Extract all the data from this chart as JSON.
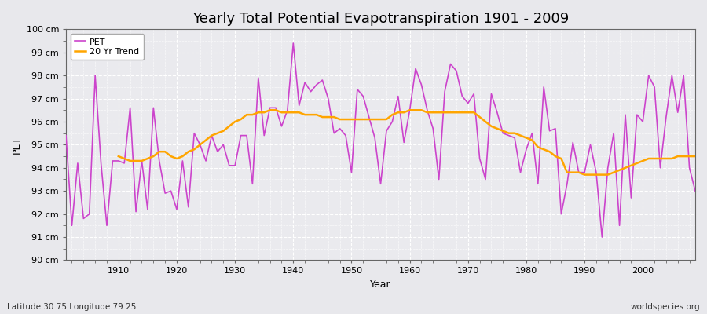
{
  "title": "Yearly Total Potential Evapotranspiration 1901 - 2009",
  "xlabel": "Year",
  "ylabel": "PET",
  "subtitle": "Latitude 30.75 Longitude 79.25",
  "watermark": "worldspecies.org",
  "ylim": [
    90,
    100
  ],
  "ytick_labels": [
    "90 cm",
    "91 cm",
    "92 cm",
    "93 cm",
    "94 cm",
    "95 cm",
    "96 cm",
    "97 cm",
    "98 cm",
    "99 cm",
    "100 cm"
  ],
  "pet_color": "#CC44CC",
  "trend_color": "#FFA500",
  "background_color": "#E8E8EC",
  "plot_bg_color": "#EAEAEE",
  "grid_color": "#FFFFFF",
  "years": [
    1901,
    1902,
    1903,
    1904,
    1905,
    1906,
    1907,
    1908,
    1909,
    1910,
    1911,
    1912,
    1913,
    1914,
    1915,
    1916,
    1917,
    1918,
    1919,
    1920,
    1921,
    1922,
    1923,
    1924,
    1925,
    1926,
    1927,
    1928,
    1929,
    1930,
    1931,
    1932,
    1933,
    1934,
    1935,
    1936,
    1937,
    1938,
    1939,
    1940,
    1941,
    1942,
    1943,
    1944,
    1945,
    1946,
    1947,
    1948,
    1949,
    1950,
    1951,
    1952,
    1953,
    1954,
    1955,
    1956,
    1957,
    1958,
    1959,
    1960,
    1961,
    1962,
    1963,
    1964,
    1965,
    1966,
    1967,
    1968,
    1969,
    1970,
    1971,
    1972,
    1973,
    1974,
    1975,
    1976,
    1977,
    1978,
    1979,
    1980,
    1981,
    1982,
    1983,
    1984,
    1985,
    1986,
    1987,
    1988,
    1989,
    1990,
    1991,
    1992,
    1993,
    1994,
    1995,
    1996,
    1997,
    1998,
    1999,
    2000,
    2001,
    2002,
    2003,
    2004,
    2005,
    2006,
    2007,
    2008,
    2009
  ],
  "pet_values": [
    95.4,
    91.5,
    94.2,
    91.8,
    92.0,
    98.0,
    94.2,
    91.5,
    94.3,
    94.3,
    94.2,
    96.6,
    92.1,
    94.3,
    92.2,
    96.6,
    94.3,
    92.9,
    93.0,
    92.2,
    94.3,
    92.3,
    95.5,
    95.0,
    94.3,
    95.4,
    94.7,
    95.0,
    94.1,
    94.1,
    95.4,
    95.4,
    93.3,
    97.9,
    95.4,
    96.6,
    96.6,
    95.8,
    96.5,
    99.4,
    96.7,
    97.7,
    97.3,
    97.6,
    97.8,
    97.0,
    95.5,
    95.7,
    95.4,
    93.8,
    97.4,
    97.1,
    96.2,
    95.3,
    93.3,
    95.6,
    96.0,
    97.1,
    95.1,
    96.5,
    98.3,
    97.6,
    96.5,
    95.7,
    93.5,
    97.3,
    98.5,
    98.2,
    97.1,
    96.8,
    97.2,
    94.4,
    93.5,
    97.2,
    96.4,
    95.5,
    95.4,
    95.3,
    93.8,
    94.8,
    95.5,
    93.3,
    97.5,
    95.6,
    95.7,
    92.0,
    93.3,
    95.1,
    93.8,
    93.8,
    95.0,
    93.8,
    91.0,
    94.0,
    95.5,
    91.5,
    96.3,
    92.7,
    96.3,
    96.0,
    98.0,
    97.5,
    94.0,
    96.2,
    98.0,
    96.4,
    98.0,
    94.0,
    93.0
  ],
  "trend_values": [
    null,
    null,
    null,
    null,
    null,
    null,
    null,
    null,
    null,
    94.5,
    94.4,
    94.3,
    94.3,
    94.3,
    94.4,
    94.5,
    94.7,
    94.7,
    94.5,
    94.4,
    94.5,
    94.7,
    94.8,
    95.0,
    95.2,
    95.4,
    95.5,
    95.6,
    95.8,
    96.0,
    96.1,
    96.3,
    96.3,
    96.4,
    96.4,
    96.5,
    96.5,
    96.4,
    96.4,
    96.4,
    96.4,
    96.3,
    96.3,
    96.3,
    96.2,
    96.2,
    96.2,
    96.1,
    96.1,
    96.1,
    96.1,
    96.1,
    96.1,
    96.1,
    96.1,
    96.1,
    96.3,
    96.4,
    96.4,
    96.5,
    96.5,
    96.5,
    96.4,
    96.4,
    96.4,
    96.4,
    96.4,
    96.4,
    96.4,
    96.4,
    96.4,
    96.2,
    96.0,
    95.8,
    95.7,
    95.6,
    95.5,
    95.5,
    95.4,
    95.3,
    95.2,
    94.9,
    94.8,
    94.7,
    94.5,
    94.4,
    93.8,
    93.8,
    93.8,
    93.7,
    93.7,
    93.7,
    93.7,
    93.7,
    93.8,
    93.9,
    94.0,
    94.1,
    94.2,
    94.3,
    94.4,
    94.4,
    94.4,
    94.4,
    94.4,
    94.5,
    94.5,
    94.5,
    94.5
  ],
  "xticks": [
    1910,
    1920,
    1930,
    1940,
    1950,
    1960,
    1970,
    1980,
    1990,
    2000
  ],
  "xlim": [
    1901,
    2009
  ],
  "title_fontsize": 13,
  "axis_fontsize": 9,
  "tick_fontsize": 8,
  "legend_fontsize": 8
}
